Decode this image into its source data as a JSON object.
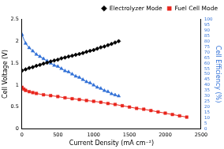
{
  "chart_data": {
    "type": "scatter",
    "x_label": "Current Density (mA cm⁻²)",
    "y_label": "Cell Voltage (V)",
    "y2_label": "Cell Efficiency (%)",
    "xlim": [
      0,
      2500
    ],
    "xticks": [
      0,
      500,
      1000,
      1500,
      2000,
      2500
    ],
    "ylim": [
      0,
      2.5
    ],
    "yticks": [
      0,
      0.5,
      1,
      1.5,
      2,
      2.5
    ],
    "y2lim": [
      0,
      100
    ],
    "y2ticks": [
      0,
      5,
      10,
      15,
      20,
      25,
      30,
      35,
      40,
      45,
      50,
      55,
      60,
      65,
      70,
      75,
      80,
      85,
      90,
      95,
      100
    ],
    "grid": false,
    "legend": "upper right",
    "series": [
      {
        "name": "Electrolyzer Mode",
        "color": "#000000",
        "marker": "diamond",
        "line_style": "solid",
        "x": [
          0,
          50,
          100,
          150,
          200,
          250,
          300,
          350,
          400,
          450,
          500,
          550,
          600,
          650,
          700,
          750,
          800,
          850,
          900,
          950,
          1000,
          1050,
          1100,
          1150,
          1200,
          1250,
          1300,
          1350
        ],
        "values": [
          1.33,
          1.36,
          1.39,
          1.41,
          1.44,
          1.46,
          1.49,
          1.51,
          1.54,
          1.56,
          1.58,
          1.61,
          1.63,
          1.65,
          1.67,
          1.69,
          1.71,
          1.73,
          1.76,
          1.78,
          1.8,
          1.83,
          1.86,
          1.88,
          1.91,
          1.94,
          1.97,
          2.0
        ]
      },
      {
        "name": "Fuel Cell Mode",
        "color": "#e8251c",
        "marker": "square",
        "line_style": "solid",
        "x": [
          0,
          25,
          50,
          100,
          150,
          200,
          300,
          400,
          500,
          600,
          700,
          800,
          900,
          1000,
          1100,
          1200,
          1300,
          1400,
          1500,
          1600,
          1700,
          1800,
          1900,
          2000,
          2100,
          2200,
          2300
        ],
        "values": [
          0.95,
          0.91,
          0.88,
          0.85,
          0.83,
          0.81,
          0.78,
          0.76,
          0.74,
          0.71,
          0.69,
          0.67,
          0.65,
          0.63,
          0.61,
          0.58,
          0.56,
          0.53,
          0.5,
          0.47,
          0.45,
          0.42,
          0.39,
          0.36,
          0.33,
          0.3,
          0.27
        ]
      },
      {
        "color": "#2f6fd6",
        "marker": "triangle",
        "line_style": "solid",
        "axis": "y2",
        "x": [
          0,
          50,
          100,
          150,
          200,
          250,
          300,
          350,
          400,
          450,
          500,
          550,
          600,
          650,
          700,
          750,
          800,
          850,
          900,
          950,
          1000,
          1050,
          1100,
          1150,
          1200,
          1250,
          1300,
          1350
        ],
        "values": [
          86,
          78,
          74,
          71,
          68,
          66,
          64,
          62,
          60,
          58,
          57,
          55,
          53,
          52,
          50,
          48,
          47,
          45,
          43,
          42,
          40,
          38,
          37,
          35,
          34,
          32,
          31,
          30
        ]
      }
    ]
  }
}
